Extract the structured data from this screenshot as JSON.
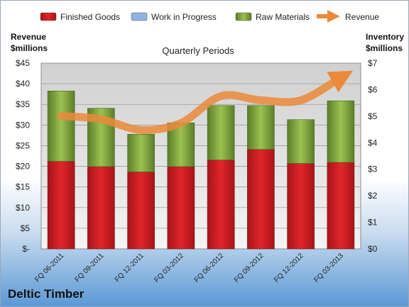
{
  "company": "Deltic Timber",
  "chart_data": {
    "type": "bar",
    "title": "Quarterly Periods",
    "categories": [
      "FQ 06-2011",
      "FQ 09-2011",
      "FQ 12-2011",
      "FQ 03-2012",
      "FQ 06-2012",
      "FQ 09-2012",
      "FQ 12-2012",
      "FQ 03-2013"
    ],
    "series": [
      {
        "name": "Finished Goods",
        "axis": "right",
        "color": "#e0262b",
        "values": [
          3.3,
          3.1,
          2.9,
          3.1,
          3.35,
          3.75,
          3.22,
          3.26
        ]
      },
      {
        "name": "Work in Progress",
        "axis": "right",
        "color": "#4a7ebb",
        "values": [
          0,
          0,
          0,
          0,
          0,
          0,
          0,
          0
        ]
      },
      {
        "name": "Raw Materials",
        "axis": "right",
        "color": "#7ea63e",
        "values": [
          2.65,
          2.2,
          1.42,
          1.65,
          2.05,
          1.65,
          1.65,
          2.32
        ]
      },
      {
        "name": "Revenue",
        "type": "line",
        "axis": "left",
        "color": "#ea8a3a",
        "values": [
          32.2,
          31.4,
          28.8,
          30.5,
          37.0,
          36.0,
          36.0,
          41.5
        ]
      }
    ],
    "left_axis": {
      "label_line1": "Revenue",
      "label_line2": "$millions",
      "ylim": [
        0,
        45
      ],
      "ticks": [
        "$-",
        "$5",
        "$10",
        "$15",
        "$20",
        "$25",
        "$30",
        "$35",
        "$40",
        "$45"
      ]
    },
    "right_axis": {
      "label_line1": "Inventory",
      "label_line2": "$millions",
      "ylim": [
        0,
        7
      ],
      "ticks": [
        "$0",
        "$1",
        "$2",
        "$3",
        "$4",
        "$5",
        "$6",
        "$7"
      ]
    },
    "legend_position": "top",
    "grid": true
  }
}
